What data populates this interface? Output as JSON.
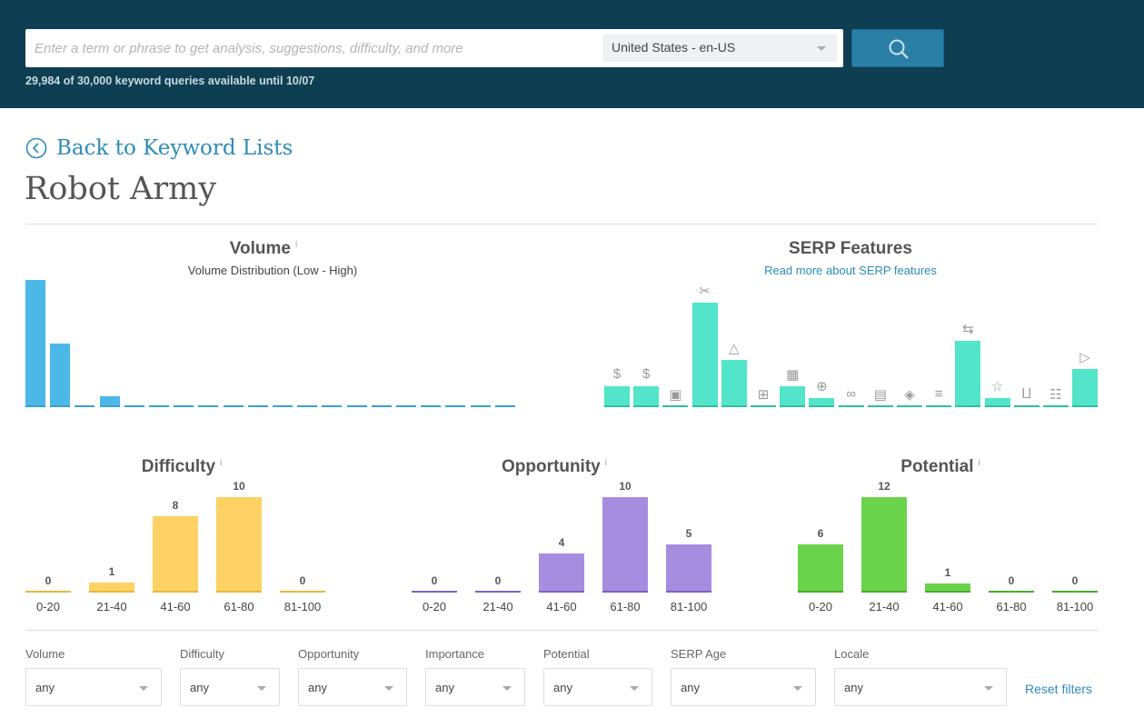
{
  "header": {
    "search_placeholder": "Enter a term or phrase to get analysis, suggestions, difficulty, and more",
    "locale": "United States - en-US",
    "quota_text": "29,984 of 30,000 keyword queries available until 10/07"
  },
  "nav": {
    "back_label": "Back to Keyword Lists"
  },
  "page": {
    "title": "Robot Army"
  },
  "volume": {
    "title": "Volume",
    "info": "i",
    "subtitle": "Volume Distribution (Low - High)"
  },
  "serp": {
    "title": "SERP Features",
    "link": "Read more about SERP features"
  },
  "chart_data": [
    {
      "type": "bar",
      "title": "Volume",
      "subtitle": "Volume Distribution (Low - High)",
      "values": [
        1.0,
        0.5,
        0,
        0.08,
        0,
        0,
        0,
        0,
        0,
        0,
        0,
        0,
        0,
        0,
        0,
        0,
        0,
        0,
        0,
        0
      ],
      "color": "#4cb8e8"
    },
    {
      "type": "bar",
      "title": "SERP Features",
      "icons": [
        "ad-top-icon",
        "ad-bottom-icon",
        "jobs-icon",
        "featured-snippet-icon",
        "image-pack-icon",
        "knowledge-panel-icon",
        "knowledge-card-icon",
        "local-pack-icon",
        "sitelinks-icon",
        "news-icon",
        "review-icon",
        "twitter-icon",
        "related-questions-icon",
        "reviews-star-icon",
        "shopping-icon",
        "people-also-ask-icon",
        "video-icon"
      ],
      "values": [
        0.19,
        0.19,
        0,
        1.0,
        0.45,
        0,
        0.19,
        0.08,
        0,
        0,
        0,
        0,
        0.63,
        0.08,
        0,
        0,
        0.36
      ],
      "color": "#52e5c9"
    },
    {
      "type": "bar",
      "title": "Difficulty",
      "categories": [
        "0-20",
        "21-40",
        "41-60",
        "61-80",
        "81-100"
      ],
      "values": [
        0,
        1,
        8,
        10,
        0
      ],
      "color": "#fdd163"
    },
    {
      "type": "bar",
      "title": "Opportunity",
      "categories": [
        "0-20",
        "21-40",
        "41-60",
        "61-80",
        "81-100"
      ],
      "values": [
        0,
        0,
        4,
        10,
        5
      ],
      "color": "#a78ddf"
    },
    {
      "type": "bar",
      "title": "Potential",
      "categories": [
        "0-20",
        "21-40",
        "41-60",
        "61-80",
        "81-100"
      ],
      "values": [
        6,
        12,
        1,
        0,
        0
      ],
      "color": "#6bd34b"
    }
  ],
  "filters": [
    {
      "label": "Volume",
      "value": "any"
    },
    {
      "label": "Difficulty",
      "value": "any"
    },
    {
      "label": "Opportunity",
      "value": "any"
    },
    {
      "label": "Importance",
      "value": "any"
    },
    {
      "label": "Potential",
      "value": "any"
    },
    {
      "label": "SERP Age",
      "value": "any"
    },
    {
      "label": "Locale",
      "value": "any"
    }
  ],
  "reset_label": "Reset filters"
}
